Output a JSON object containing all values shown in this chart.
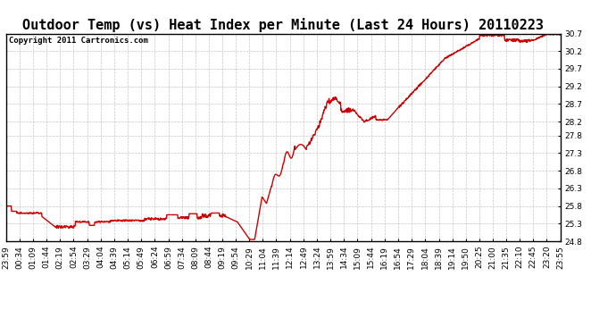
{
  "title": "Outdoor Temp (vs) Heat Index per Minute (Last 24 Hours) 20110223",
  "copyright_text": "Copyright 2011 Cartronics.com",
  "line_color": "#cc0000",
  "background_color": "#ffffff",
  "plot_bg_color": "#ffffff",
  "grid_color": "#c0c0c0",
  "ylim": [
    24.8,
    30.7
  ],
  "yticks": [
    24.8,
    25.3,
    25.8,
    26.3,
    26.8,
    27.3,
    27.8,
    28.2,
    28.7,
    29.2,
    29.7,
    30.2,
    30.7
  ],
  "xtick_labels": [
    "23:59",
    "00:34",
    "01:09",
    "01:44",
    "02:19",
    "02:54",
    "03:29",
    "04:04",
    "04:39",
    "05:14",
    "05:49",
    "06:24",
    "06:59",
    "07:34",
    "08:09",
    "08:44",
    "09:19",
    "09:54",
    "10:29",
    "11:04",
    "11:39",
    "12:14",
    "12:49",
    "13:24",
    "13:59",
    "14:34",
    "15:09",
    "15:44",
    "16:19",
    "16:54",
    "17:29",
    "18:04",
    "18:39",
    "19:14",
    "19:50",
    "20:25",
    "21:00",
    "21:35",
    "22:10",
    "22:45",
    "23:20",
    "23:55"
  ],
  "title_fontsize": 11,
  "copyright_fontsize": 6.5,
  "tick_fontsize": 6.5,
  "line_width": 1.0,
  "num_points": 1440,
  "border_color": "#000000"
}
